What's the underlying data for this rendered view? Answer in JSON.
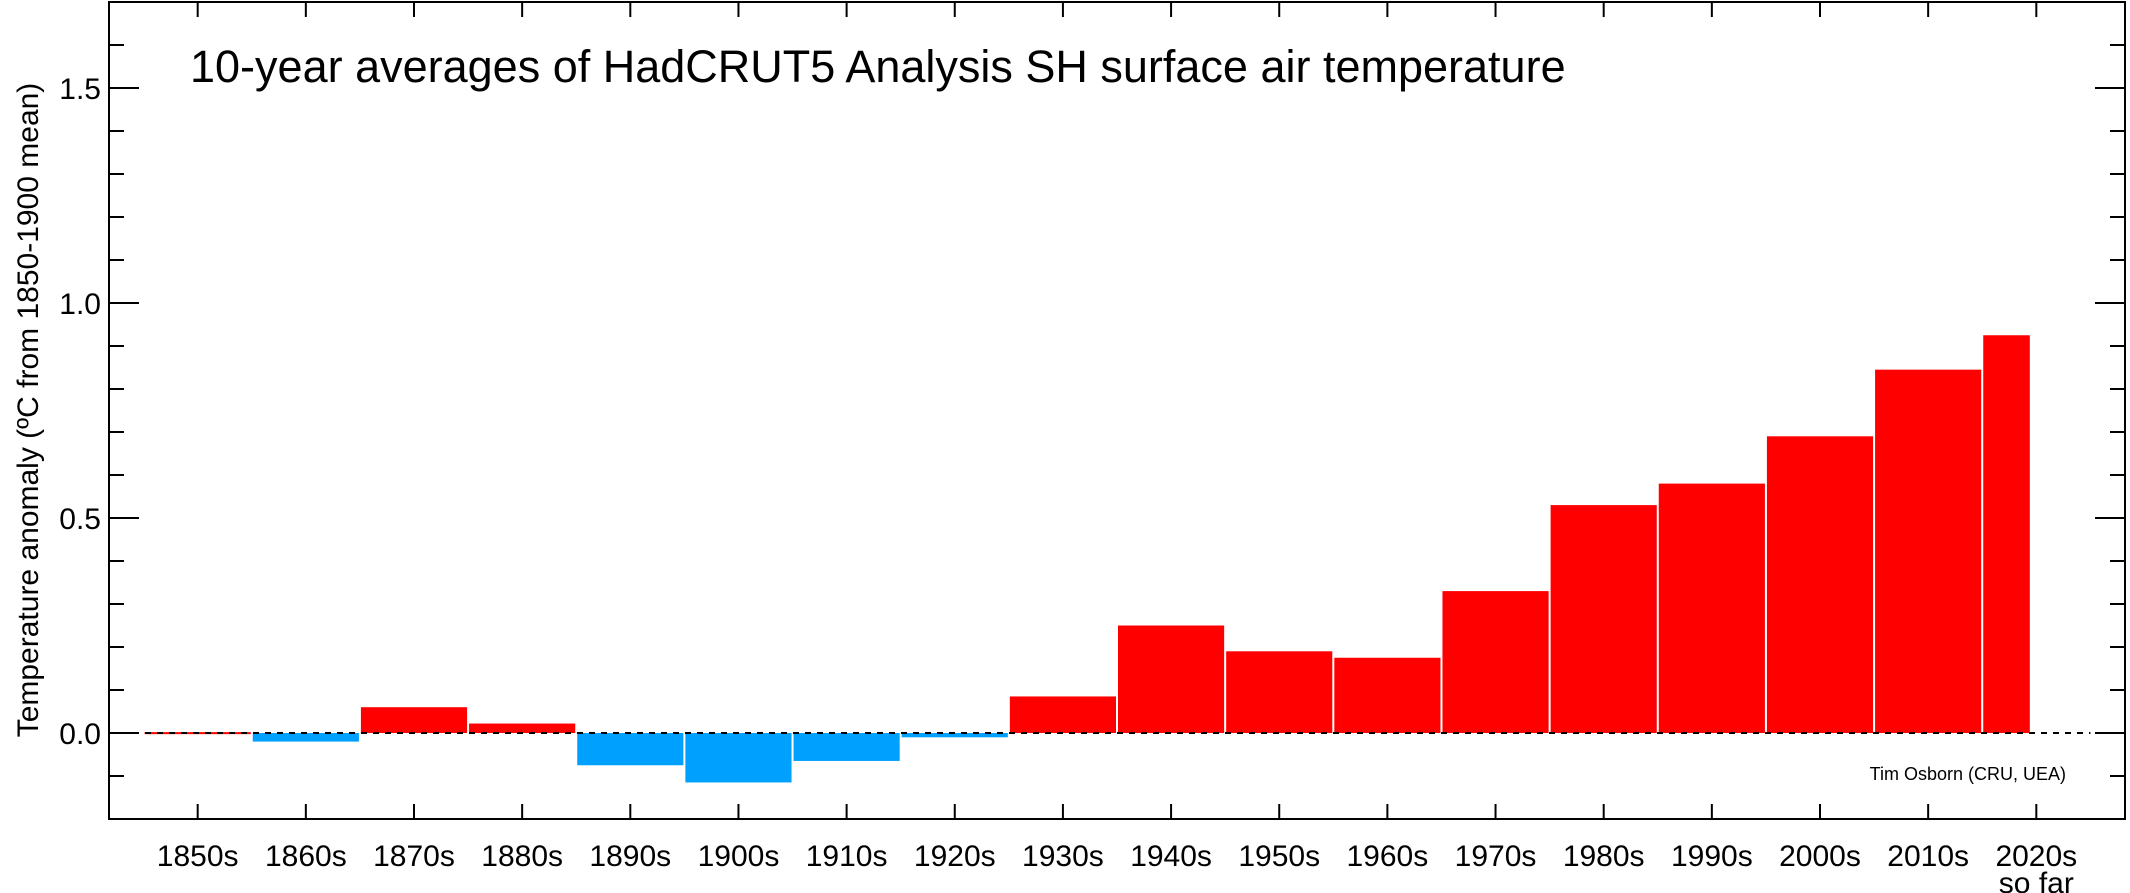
{
  "chart_data": {
    "type": "bar",
    "title": "10-year averages of HadCRUT5 Analysis SH surface air temperature",
    "ylabel": "Temperature anomaly (ºC from 1850-1900 mean)",
    "xlabel": "",
    "credit": "Tim Osborn (CRU, UEA)",
    "categories": [
      "1850s",
      "1860s",
      "1870s",
      "1880s",
      "1890s",
      "1900s",
      "1910s",
      "1920s",
      "1930s",
      "1940s",
      "1950s",
      "1960s",
      "1970s",
      "1980s",
      "1990s",
      "2000s",
      "2010s",
      "2020s"
    ],
    "last_category_note": "so far",
    "decades": [
      1850,
      1860,
      1870,
      1880,
      1890,
      1900,
      1910,
      1920,
      1930,
      1940,
      1950,
      1960,
      1970,
      1980,
      1990,
      2000,
      2010,
      2020
    ],
    "values": [
      0.002,
      -0.02,
      0.06,
      0.022,
      -0.075,
      -0.115,
      -0.065,
      -0.01,
      0.085,
      0.25,
      0.19,
      0.175,
      0.33,
      0.53,
      0.58,
      0.69,
      0.845,
      0.925
    ],
    "ylim": [
      -0.2,
      1.7
    ],
    "xlim": [
      1841.8,
      2028.2
    ],
    "yticks": [
      0.0,
      0.5,
      1.0,
      1.5
    ],
    "ytick_labels": [
      "0.0",
      "0.5",
      "1.0",
      "1.5"
    ],
    "positive_color": "#ff0000",
    "negative_color": "#00a0ff",
    "grid": false,
    "legend": "none"
  }
}
